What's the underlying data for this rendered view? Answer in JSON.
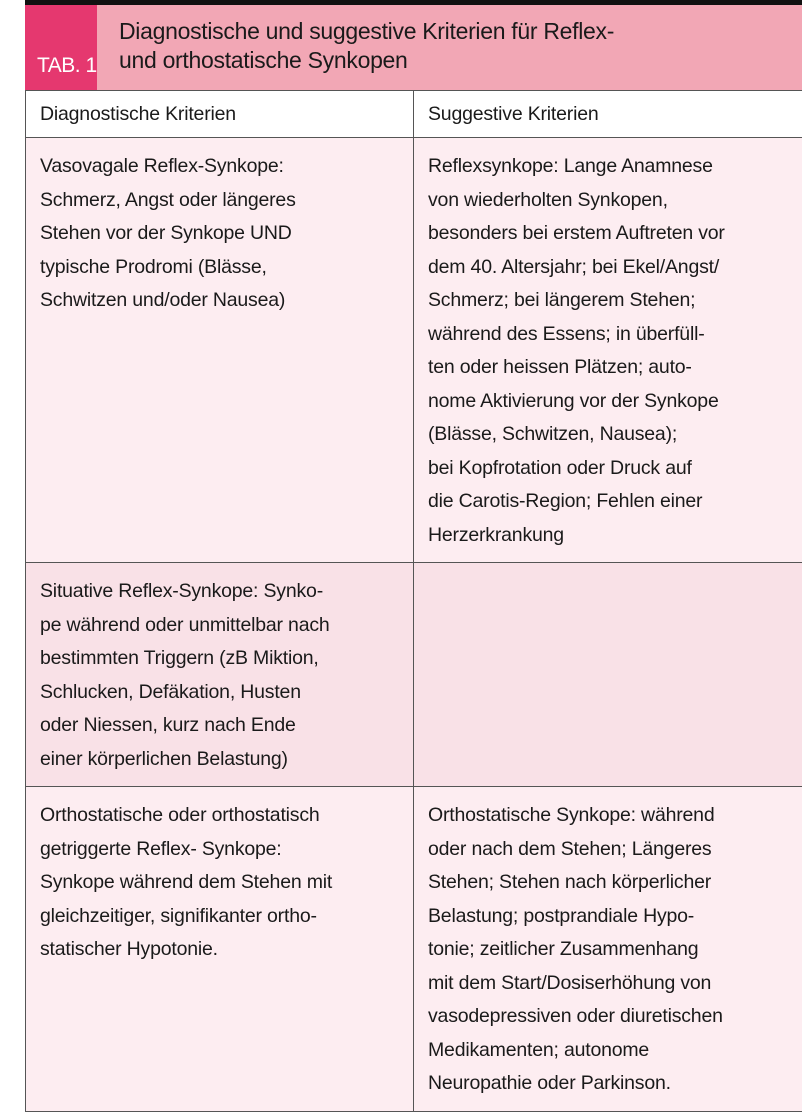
{
  "header": {
    "tab_label": "TAB. 1",
    "title": "Diagnostische und suggestive Kriterien für Reflex-\nund orthostatische Synkopen"
  },
  "columns": [
    "Diagnostische Kriterien",
    "Suggestive Kriterien"
  ],
  "rows": [
    {
      "diagnostic": "Vasovagale Reflex-Synkope:\nSchmerz, Angst oder längeres\nStehen vor der Synkope UND\ntypische Prodromi (Blässe,\nSchwitzen und/oder Nausea)",
      "suggestive": "Reflexsynkope: Lange Anamnese\nvon wiederholten Synkopen,\nbesonders bei erstem Auftreten vor\ndem 40. Altersjahr; bei Ekel/Angst/\nSchmerz; bei längerem Stehen;\nwährend des Essens; in überfüll-\nten oder heissen Plätzen; auto-\nnome Aktivierung vor der Synkope\n(Blässe, Schwitzen, Nausea);\nbei Kopfrotation oder Druck auf\ndie Carotis-Region; Fehlen einer\nHerzerkrankung"
    },
    {
      "diagnostic": "Situative Reflex-Synkope: Synko-\npe während oder unmittelbar nach\nbestimmten Triggern (zB Miktion,\nSchlucken, Defäkation, Husten\noder Niessen, kurz nach Ende\neiner körperlichen Belastung)",
      "suggestive": ""
    },
    {
      "diagnostic": "Orthostatische oder orthostatisch\ngetriggerte Reflex- Synkope:\nSynkope während dem Stehen mit\ngleichzeitiger, signifikanter ortho-\nstatischer Hypotonie.",
      "suggestive": "Orthostatische Synkope: während\noder nach dem Stehen; Längeres\nStehen; Stehen nach körperlicher\nBelastung; postprandiale Hypo-\ntonie; zeitlicher Zusammenhang\nmit dem Start/Dosiserhöhung von\nvasodepressiven oder diuretischen\nMedikamenten; autonome\nNeuropathie oder Parkinson."
    }
  ],
  "colors": {
    "tab": "#e5386f",
    "title_bg": "#f2a7b5",
    "row_light": "#fdedf1",
    "row_dark": "#f9e1e7"
  }
}
